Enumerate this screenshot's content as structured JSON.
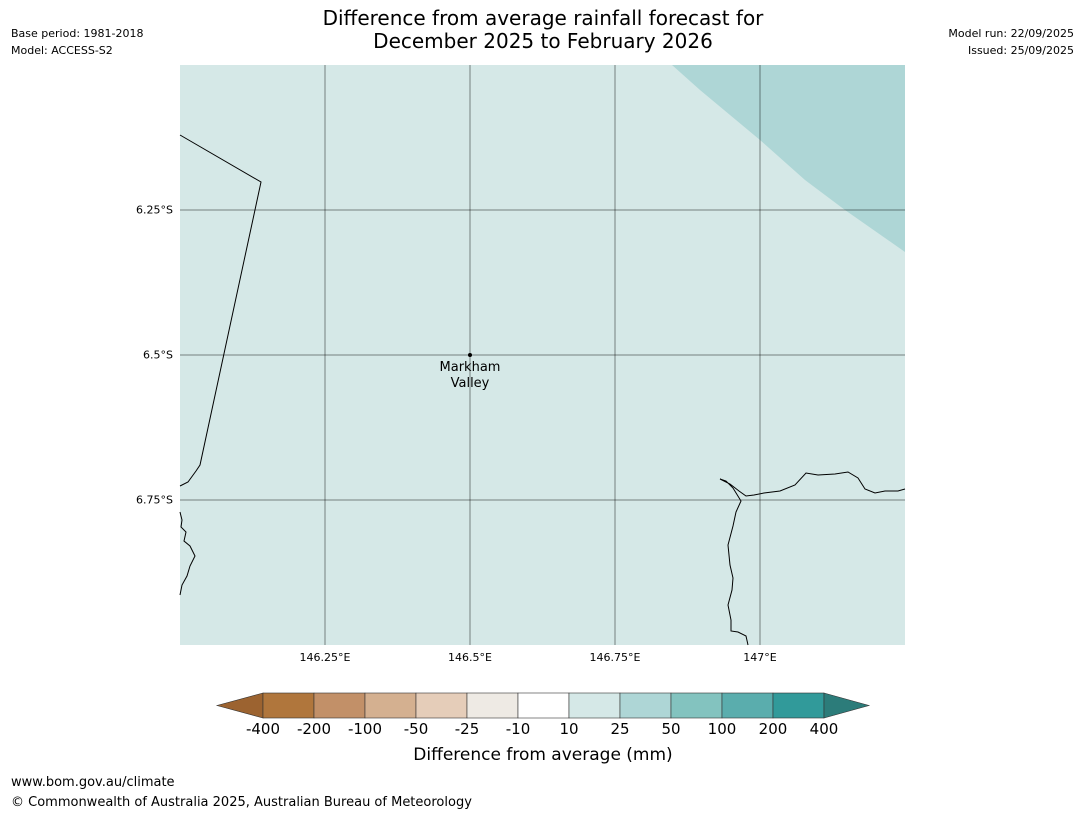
{
  "header": {
    "base_period": "Base period: 1981-2018",
    "model": "Model: ACCESS-S2",
    "title_line1": "Difference from average rainfall forecast for",
    "title_line2": "December 2025 to February 2026",
    "model_run": "Model run: 22/09/2025",
    "issued": "Issued: 25/09/2025"
  },
  "map": {
    "latitude_labels": [
      "6.25°S",
      "6.5°S",
      "6.75°S"
    ],
    "longitude_labels": [
      "146.25°E",
      "146.5°E",
      "146.75°E",
      "147°E"
    ],
    "place": {
      "name_line1": "Markham",
      "name_line2": "Valley"
    },
    "background_color": "#d5e8e7",
    "wetter_zone_color": "#aed6d6"
  },
  "colorbar": {
    "label": "Difference from average (mm)",
    "ticks": [
      "-400",
      "-200",
      "-100",
      "-50",
      "-25",
      "-10",
      "10",
      "25",
      "50",
      "100",
      "200",
      "400"
    ],
    "colors": [
      "#9c6330",
      "#b0763c",
      "#c29068",
      "#d4b090",
      "#e5cdb9",
      "#eeeae4",
      "#ffffff",
      "#d5e8e7",
      "#aed6d6",
      "#83c3bf",
      "#5aadad",
      "#319a9a",
      "#2c7c7a"
    ]
  },
  "footer": {
    "url": "www.bom.gov.au/climate",
    "copyright": "© Commonwealth of Australia 2025, Australian Bureau of Meteorology"
  }
}
